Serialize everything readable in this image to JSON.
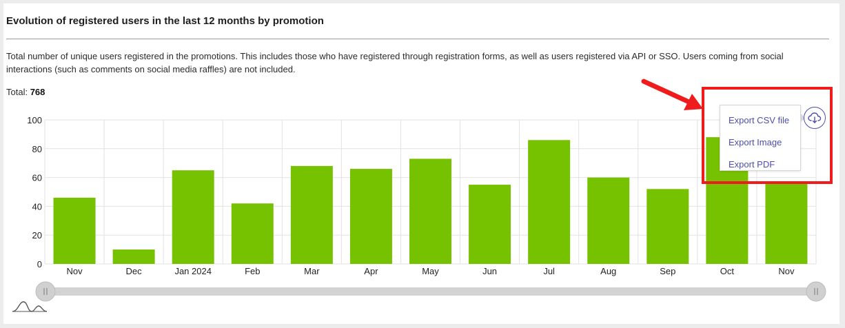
{
  "header": {
    "title": "Evolution of registered users in the last 12 months by promotion",
    "description": "Total number of unique users registered in the promotions. This includes those who have registered through registration forms, as well as users registered via API or SSO. Users coming from social interactions (such as comments on social media raffles) are not included.",
    "total_label": "Total:",
    "total_value": "768"
  },
  "export_menu": {
    "items": [
      "Export CSV file",
      "Export Image",
      "Export PDF"
    ],
    "icon": "cloud-download-icon"
  },
  "colors": {
    "bar": "#77c200",
    "accent": "#4b4db0",
    "highlight": "#ee1c1c"
  },
  "chart_data": {
    "type": "bar",
    "categories": [
      "Nov",
      "Dec",
      "Jan 2024",
      "Feb",
      "Mar",
      "Apr",
      "May",
      "Jun",
      "Jul",
      "Aug",
      "Sep",
      "Oct",
      "Nov"
    ],
    "values": [
      46,
      10,
      65,
      42,
      68,
      66,
      73,
      55,
      86,
      60,
      52,
      88,
      57
    ],
    "ylim": [
      0,
      100
    ],
    "yticks": [
      0,
      20,
      40,
      60,
      80,
      100
    ],
    "grid": true,
    "legend": "none",
    "scrollbar": true
  }
}
